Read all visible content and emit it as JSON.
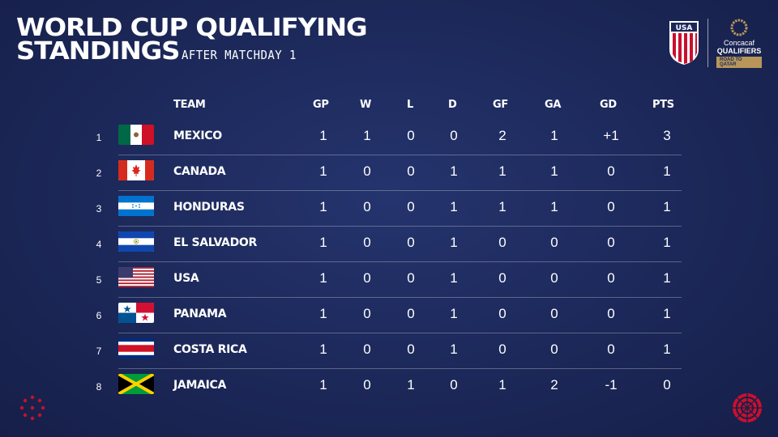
{
  "header": {
    "title_line1": "WORLD CUP QUALIFYING",
    "title_line2": "STANDINGS",
    "subtitle": "AFTER MATCHDAY 1"
  },
  "logos": {
    "ussf_text": "USA",
    "concacaf_line1": "Concacaf",
    "concacaf_line2": "QUALIFIERS",
    "concacaf_badge": "ROAD TO QATAR"
  },
  "table": {
    "columns": {
      "team": "TEAM",
      "gp": "GP",
      "w": "W",
      "l": "L",
      "d": "D",
      "gf": "GF",
      "ga": "GA",
      "gd": "GD",
      "pts": "PTS"
    },
    "rows": [
      {
        "rank": "1",
        "team": "MEXICO",
        "flag": "mexico-flag",
        "gp": "1",
        "w": "1",
        "l": "0",
        "d": "0",
        "gf": "2",
        "ga": "1",
        "gd": "+1",
        "pts": "3"
      },
      {
        "rank": "2",
        "team": "CANADA",
        "flag": "canada-flag",
        "gp": "1",
        "w": "0",
        "l": "0",
        "d": "1",
        "gf": "1",
        "ga": "1",
        "gd": "0",
        "pts": "1"
      },
      {
        "rank": "3",
        "team": "HONDURAS",
        "flag": "honduras-flag",
        "gp": "1",
        "w": "0",
        "l": "0",
        "d": "1",
        "gf": "1",
        "ga": "1",
        "gd": "0",
        "pts": "1"
      },
      {
        "rank": "4",
        "team": "EL SALVADOR",
        "flag": "el-salvador-flag",
        "gp": "1",
        "w": "0",
        "l": "0",
        "d": "1",
        "gf": "0",
        "ga": "0",
        "gd": "0",
        "pts": "1"
      },
      {
        "rank": "5",
        "team": "USA",
        "flag": "usa-flag",
        "gp": "1",
        "w": "0",
        "l": "0",
        "d": "1",
        "gf": "0",
        "ga": "0",
        "gd": "0",
        "pts": "1"
      },
      {
        "rank": "6",
        "team": "PANAMA",
        "flag": "panama-flag",
        "gp": "1",
        "w": "0",
        "l": "0",
        "d": "1",
        "gf": "0",
        "ga": "0",
        "gd": "0",
        "pts": "1"
      },
      {
        "rank": "7",
        "team": "COSTA RICA",
        "flag": "costa-rica-flag",
        "gp": "1",
        "w": "0",
        "l": "0",
        "d": "1",
        "gf": "0",
        "ga": "0",
        "gd": "0",
        "pts": "1"
      },
      {
        "rank": "8",
        "team": "JAMAICA",
        "flag": "jamaica-flag",
        "gp": "1",
        "w": "0",
        "l": "1",
        "d": "0",
        "gf": "1",
        "ga": "2",
        "gd": "-1",
        "pts": "0"
      }
    ]
  },
  "colors": {
    "background": "#1c2859",
    "accent_red": "#c8102e",
    "gold": "#b8965a",
    "text": "#ffffff"
  }
}
